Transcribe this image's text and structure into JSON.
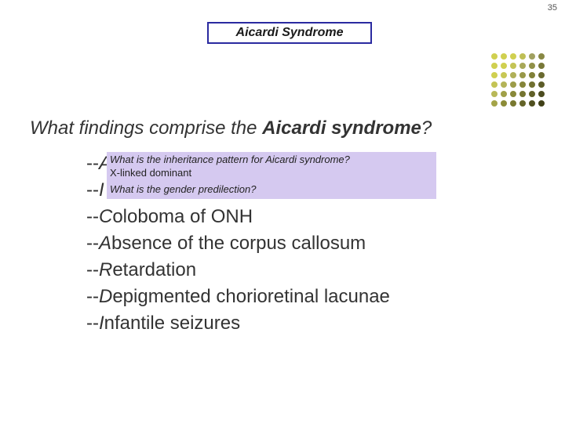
{
  "page_number": "35",
  "title": {
    "text": "Aicardi Syndrome",
    "border_color": "#2a2aa0",
    "background_color": "#ffffff",
    "text_color": "#1a1a1a"
  },
  "dots": {
    "colors": [
      "#d0d050",
      "#d0d050",
      "#d0d050",
      "#bfbf55",
      "#a0a060",
      "#888844",
      "#d0d050",
      "#d0d050",
      "#c4c455",
      "#a8a858",
      "#909048",
      "#787838",
      "#d0d050",
      "#c8c855",
      "#b0b058",
      "#989848",
      "#808038",
      "#6a6a30",
      "#c4c455",
      "#b4b458",
      "#9c9c48",
      "#848438",
      "#707030",
      "#5c5c28",
      "#b8b858",
      "#a0a048",
      "#888838",
      "#747430",
      "#606028",
      "#4c4c20",
      "#a4a448",
      "#8c8c38",
      "#787830",
      "#646428",
      "#505020",
      "#404018"
    ]
  },
  "question": {
    "prefix": "What findings comprise the ",
    "bold": "Aicardi syndrome",
    "suffix": "?"
  },
  "callout1": {
    "line1": "What is the inheritance pattern for Aicardi syndrome?",
    "line2": "X-linked dominant",
    "background_color": "#d5c9f0",
    "text_color": "#222"
  },
  "callout2": {
    "text": "What is the gender predilection?",
    "background_color": "#d5c9f0",
    "text_color": "#222"
  },
  "list": [
    {
      "prefix": "--",
      "first": "A",
      "rest": ""
    },
    {
      "prefix": "--",
      "first": "I",
      "rest": ""
    },
    {
      "prefix": "--",
      "first": "C",
      "rest": "oloboma of ONH"
    },
    {
      "prefix": "--",
      "first": "A",
      "rest": "bsence of the corpus callosum"
    },
    {
      "prefix": "--",
      "first": "R",
      "rest": "etardation"
    },
    {
      "prefix": "--",
      "first": "D",
      "rest": "epigmented chorioretinal lacunae"
    },
    {
      "prefix": "--",
      "first": "I",
      "rest": "nfantile seizures"
    }
  ],
  "colors": {
    "body_text": "#333333"
  }
}
